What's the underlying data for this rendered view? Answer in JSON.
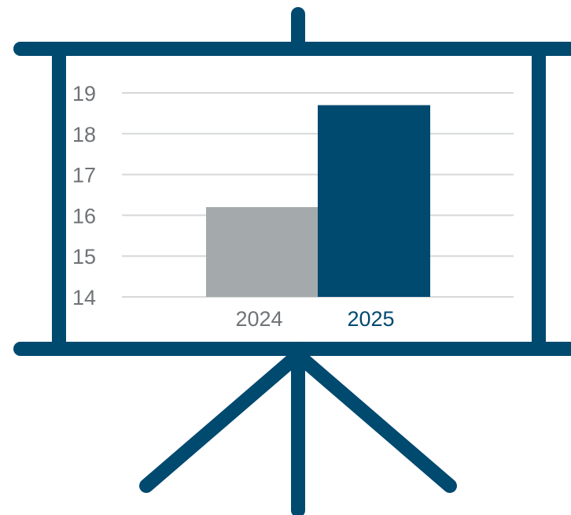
{
  "colors": {
    "easel": "#00496f",
    "bar_2024": "#a4aaab",
    "bar_2025": "#00496f",
    "grid": "#d6d8d9",
    "tick_text": "#6f7376",
    "label_2024": "#6f7376",
    "label_2025": "#00496f"
  },
  "icons": {
    "easel": "presentation-easel-icon"
  },
  "chart_data": {
    "type": "bar",
    "title": "",
    "xlabel": "",
    "ylabel": "",
    "categories": [
      "2024",
      "2025"
    ],
    "values": [
      16.2,
      18.7
    ],
    "ylim": [
      14,
      19
    ],
    "yticks": [
      "14",
      "15",
      "16",
      "17",
      "18",
      "19"
    ],
    "grid": true,
    "legend": "none"
  }
}
